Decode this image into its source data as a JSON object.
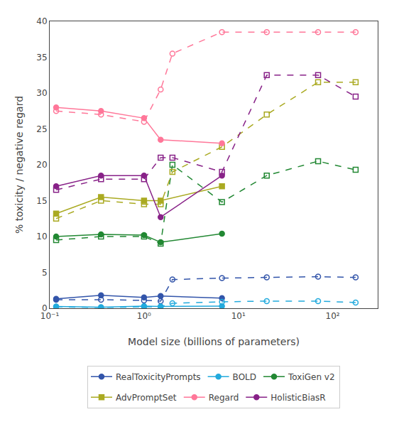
{
  "chart_data": {
    "type": "line",
    "x_label": "Model size (billions of parameters)",
    "y_label": "% toxicity / negative regard",
    "log": "x",
    "xlim": [
      0.1,
      300
    ],
    "ylim": [
      0,
      40
    ],
    "xticks": [
      {
        "value": 0.1,
        "label": "10⁻¹"
      },
      {
        "value": 1,
        "label": "10⁰"
      },
      {
        "value": 10,
        "label": "10¹"
      },
      {
        "value": 100,
        "label": "10²"
      }
    ],
    "yticks": [
      0,
      5,
      10,
      15,
      20,
      25,
      30,
      35,
      40
    ],
    "grid": false,
    "legend": "bottom",
    "series": [
      {
        "name": "RealToxicityPrompts",
        "color": "#3355aa",
        "line_style": "solid",
        "marker": "circle",
        "x": [
          0.117,
          0.35,
          1.0,
          1.5,
          6.7
        ],
        "values": [
          1.3,
          1.8,
          1.5,
          1.7,
          1.4
        ]
      },
      {
        "name": "RealToxicityPrompts",
        "color": "#3355aa",
        "line_style": "dashed",
        "marker": "circle-open",
        "x": [
          0.117,
          0.35,
          1.0,
          1.5,
          2.0,
          6.7,
          20,
          70,
          175
        ],
        "values": [
          1.2,
          1.2,
          1.1,
          1.0,
          4.0,
          4.2,
          4.3,
          4.4,
          4.3
        ]
      },
      {
        "name": "BOLD",
        "color": "#22aadd",
        "line_style": "solid",
        "marker": "circle",
        "x": [
          0.117,
          0.35,
          1.0,
          1.5,
          6.7
        ],
        "values": [
          0.25,
          0.15,
          0.3,
          0.25,
          0.3
        ]
      },
      {
        "name": "BOLD",
        "color": "#22aadd",
        "line_style": "dashed",
        "marker": "circle-open",
        "x": [
          0.117,
          0.35,
          1.0,
          1.5,
          2.0,
          6.7,
          20,
          70,
          175
        ],
        "values": [
          0.2,
          0.1,
          0.2,
          0.2,
          0.7,
          0.9,
          1.0,
          1.0,
          0.8
        ]
      },
      {
        "name": "ToxiGen v2",
        "color": "#228833",
        "line_style": "solid",
        "marker": "circle",
        "x": [
          0.117,
          0.35,
          1.0,
          1.5,
          6.7
        ],
        "values": [
          10.0,
          10.3,
          10.2,
          9.2,
          10.4
        ]
      },
      {
        "name": "ToxiGen v2",
        "color": "#228833",
        "line_style": "dashed",
        "marker": "square-open",
        "x": [
          0.117,
          0.35,
          1.0,
          1.5,
          2.0,
          6.7,
          20,
          70,
          175
        ],
        "values": [
          9.5,
          10.0,
          10.0,
          9.0,
          20.0,
          14.8,
          18.5,
          20.5,
          19.3
        ]
      },
      {
        "name": "AdvPromptSet",
        "color": "#aaaa22",
        "line_style": "solid",
        "marker": "square",
        "x": [
          0.117,
          0.35,
          1.0,
          1.5,
          6.7
        ],
        "values": [
          13.2,
          15.5,
          15.0,
          15.0,
          17.0
        ]
      },
      {
        "name": "AdvPromptSet",
        "color": "#aaaa22",
        "line_style": "dashed",
        "marker": "square-open",
        "x": [
          0.117,
          0.35,
          1.0,
          1.5,
          2.0,
          6.7,
          20,
          70,
          175
        ],
        "values": [
          12.5,
          15.0,
          14.5,
          14.5,
          19.0,
          22.5,
          27.0,
          31.5,
          31.5
        ]
      },
      {
        "name": "Regard",
        "color": "#ff7799",
        "line_style": "solid",
        "marker": "circle",
        "x": [
          0.117,
          0.35,
          1.0,
          1.5,
          6.7
        ],
        "values": [
          28.0,
          27.5,
          26.5,
          23.5,
          23.0
        ]
      },
      {
        "name": "Regard",
        "color": "#ff7799",
        "line_style": "dashed",
        "marker": "circle-open",
        "x": [
          0.117,
          0.35,
          1.0,
          1.5,
          2.0,
          6.7,
          20,
          70,
          175
        ],
        "values": [
          27.5,
          27.0,
          26.0,
          30.5,
          35.5,
          38.5,
          38.5,
          38.5,
          38.5
        ]
      },
      {
        "name": "HolisticBiasR",
        "color": "#882288",
        "line_style": "solid",
        "marker": "circle",
        "x": [
          0.117,
          0.35,
          1.0,
          1.5,
          6.7
        ],
        "values": [
          17.0,
          18.5,
          18.5,
          12.7,
          18.5
        ]
      },
      {
        "name": "HolisticBiasR",
        "color": "#882288",
        "line_style": "dashed",
        "marker": "square-open",
        "x": [
          0.117,
          0.35,
          1.0,
          1.5,
          2.0,
          6.7,
          20,
          70,
          175
        ],
        "values": [
          16.5,
          18.0,
          18.0,
          21.0,
          21.0,
          19.0,
          32.5,
          32.5,
          29.5
        ]
      }
    ]
  }
}
